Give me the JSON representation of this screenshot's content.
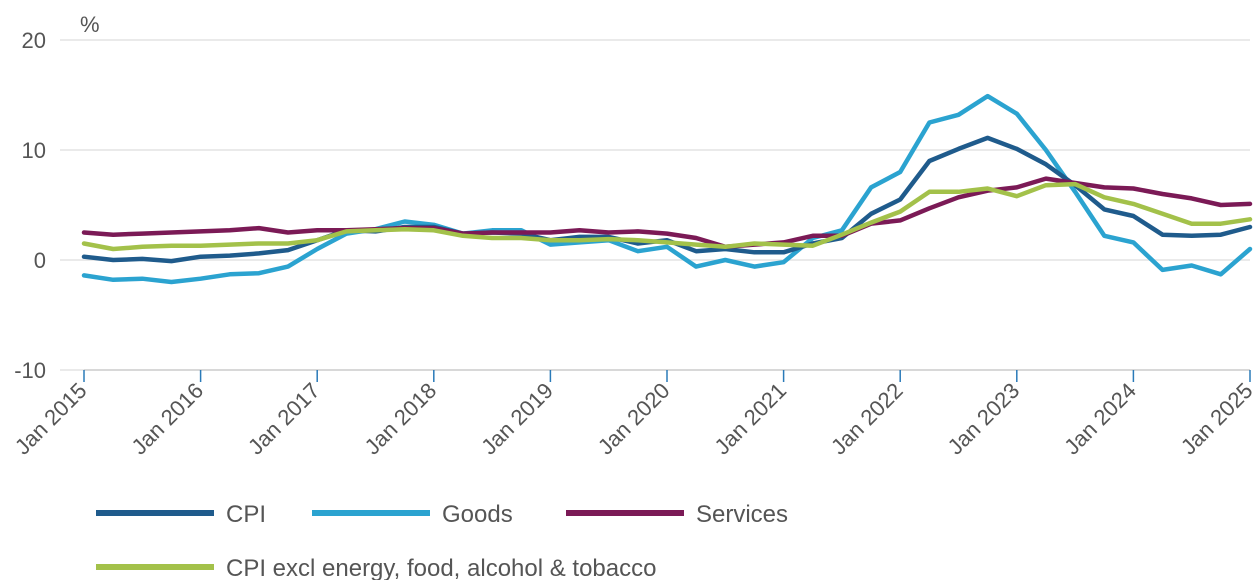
{
  "chart_data": {
    "type": "line",
    "title": "",
    "unit_label": "%",
    "ylim": [
      -10,
      20
    ],
    "yticks": [
      -10,
      0,
      10,
      20
    ],
    "grid": "horizontal",
    "x_start": "Jan 2015",
    "x_end": "Jan 2025",
    "x_tick_labels": [
      "Jan 2015",
      "Jan 2016",
      "Jan 2017",
      "Jan 2018",
      "Jan 2019",
      "Jan 2020",
      "Jan 2021",
      "Jan 2022",
      "Jan 2023",
      "Jan 2024",
      "Jan 2025"
    ],
    "legend_position": "bottom",
    "series": [
      {
        "name": "CPI",
        "color": "#1f5b8c",
        "points": [
          [
            "Jan 2015",
            0.3
          ],
          [
            "Apr 2015",
            0.0
          ],
          [
            "Jul 2015",
            0.1
          ],
          [
            "Oct 2015",
            -0.1
          ],
          [
            "Jan 2016",
            0.3
          ],
          [
            "Apr 2016",
            0.4
          ],
          [
            "Jul 2016",
            0.6
          ],
          [
            "Oct 2016",
            0.9
          ],
          [
            "Jan 2017",
            1.8
          ],
          [
            "Apr 2017",
            2.7
          ],
          [
            "Jul 2017",
            2.6
          ],
          [
            "Oct 2017",
            3.0
          ],
          [
            "Jan 2018",
            3.0
          ],
          [
            "Apr 2018",
            2.4
          ],
          [
            "Jul 2018",
            2.5
          ],
          [
            "Oct 2018",
            2.4
          ],
          [
            "Jan 2019",
            1.8
          ],
          [
            "Apr 2019",
            2.1
          ],
          [
            "Jul 2019",
            2.1
          ],
          [
            "Oct 2019",
            1.5
          ],
          [
            "Jan 2020",
            1.8
          ],
          [
            "Apr 2020",
            0.8
          ],
          [
            "Jul 2020",
            1.0
          ],
          [
            "Oct 2020",
            0.7
          ],
          [
            "Jan 2021",
            0.7
          ],
          [
            "Apr 2021",
            1.5
          ],
          [
            "Jul 2021",
            2.0
          ],
          [
            "Oct 2021",
            4.2
          ],
          [
            "Jan 2022",
            5.5
          ],
          [
            "Apr 2022",
            9.0
          ],
          [
            "Jul 2022",
            10.1
          ],
          [
            "Oct 2022",
            11.1
          ],
          [
            "Jan 2023",
            10.1
          ],
          [
            "Apr 2023",
            8.7
          ],
          [
            "Jul 2023",
            6.8
          ],
          [
            "Oct 2023",
            4.6
          ],
          [
            "Jan 2024",
            4.0
          ],
          [
            "Apr 2024",
            2.3
          ],
          [
            "Jul 2024",
            2.2
          ],
          [
            "Oct 2024",
            2.3
          ],
          [
            "Jan 2025",
            3.0
          ]
        ]
      },
      {
        "name": "Goods",
        "color": "#2ba3d0",
        "points": [
          [
            "Jan 2015",
            -1.4
          ],
          [
            "Apr 2015",
            -1.8
          ],
          [
            "Jul 2015",
            -1.7
          ],
          [
            "Oct 2015",
            -2.0
          ],
          [
            "Jan 2016",
            -1.7
          ],
          [
            "Apr 2016",
            -1.3
          ],
          [
            "Jul 2016",
            -1.2
          ],
          [
            "Oct 2016",
            -0.6
          ],
          [
            "Jan 2017",
            1.0
          ],
          [
            "Apr 2017",
            2.4
          ],
          [
            "Jul 2017",
            2.8
          ],
          [
            "Oct 2017",
            3.5
          ],
          [
            "Jan 2018",
            3.2
          ],
          [
            "Apr 2018",
            2.4
          ],
          [
            "Jul 2018",
            2.7
          ],
          [
            "Oct 2018",
            2.7
          ],
          [
            "Jan 2019",
            1.4
          ],
          [
            "Apr 2019",
            1.6
          ],
          [
            "Jul 2019",
            1.8
          ],
          [
            "Oct 2019",
            0.8
          ],
          [
            "Jan 2020",
            1.2
          ],
          [
            "Apr 2020",
            -0.6
          ],
          [
            "Jul 2020",
            0.0
          ],
          [
            "Oct 2020",
            -0.6
          ],
          [
            "Jan 2021",
            -0.2
          ],
          [
            "Apr 2021",
            2.0
          ],
          [
            "Jul 2021",
            2.7
          ],
          [
            "Oct 2021",
            6.6
          ],
          [
            "Jan 2022",
            8.0
          ],
          [
            "Apr 2022",
            12.5
          ],
          [
            "Jul 2022",
            13.2
          ],
          [
            "Oct 2022",
            14.9
          ],
          [
            "Jan 2023",
            13.3
          ],
          [
            "Apr 2023",
            10.0
          ],
          [
            "Jul 2023",
            6.2
          ],
          [
            "Oct 2023",
            2.2
          ],
          [
            "Jan 2024",
            1.6
          ],
          [
            "Apr 2024",
            -0.9
          ],
          [
            "Jul 2024",
            -0.5
          ],
          [
            "Oct 2024",
            -1.3
          ],
          [
            "Jan 2025",
            1.0
          ]
        ]
      },
      {
        "name": "Services",
        "color": "#7b1a56",
        "points": [
          [
            "Jan 2015",
            2.5
          ],
          [
            "Apr 2015",
            2.3
          ],
          [
            "Jul 2015",
            2.4
          ],
          [
            "Oct 2015",
            2.5
          ],
          [
            "Jan 2016",
            2.6
          ],
          [
            "Apr 2016",
            2.7
          ],
          [
            "Jul 2016",
            2.9
          ],
          [
            "Oct 2016",
            2.5
          ],
          [
            "Jan 2017",
            2.7
          ],
          [
            "Apr 2017",
            2.7
          ],
          [
            "Jul 2017",
            2.8
          ],
          [
            "Oct 2017",
            2.9
          ],
          [
            "Jan 2018",
            2.9
          ],
          [
            "Apr 2018",
            2.4
          ],
          [
            "Jul 2018",
            2.5
          ],
          [
            "Oct 2018",
            2.5
          ],
          [
            "Jan 2019",
            2.5
          ],
          [
            "Apr 2019",
            2.7
          ],
          [
            "Jul 2019",
            2.5
          ],
          [
            "Oct 2019",
            2.6
          ],
          [
            "Jan 2020",
            2.4
          ],
          [
            "Apr 2020",
            2.0
          ],
          [
            "Jul 2020",
            1.2
          ],
          [
            "Oct 2020",
            1.4
          ],
          [
            "Jan 2021",
            1.6
          ],
          [
            "Apr 2021",
            2.2
          ],
          [
            "Jul 2021",
            2.2
          ],
          [
            "Oct 2021",
            3.3
          ],
          [
            "Jan 2022",
            3.6
          ],
          [
            "Apr 2022",
            4.7
          ],
          [
            "Jul 2022",
            5.7
          ],
          [
            "Oct 2022",
            6.3
          ],
          [
            "Jan 2023",
            6.6
          ],
          [
            "Apr 2023",
            7.4
          ],
          [
            "Jul 2023",
            7.0
          ],
          [
            "Oct 2023",
            6.6
          ],
          [
            "Jan 2024",
            6.5
          ],
          [
            "Apr 2024",
            6.0
          ],
          [
            "Jul 2024",
            5.6
          ],
          [
            "Oct 2024",
            5.0
          ],
          [
            "Jan 2025",
            5.1
          ]
        ]
      },
      {
        "name": "CPI excl energy, food, alcohol & tobacco",
        "color": "#a3c14a",
        "points": [
          [
            "Jan 2015",
            1.5
          ],
          [
            "Apr 2015",
            1.0
          ],
          [
            "Jul 2015",
            1.2
          ],
          [
            "Oct 2015",
            1.3
          ],
          [
            "Jan 2016",
            1.3
          ],
          [
            "Apr 2016",
            1.4
          ],
          [
            "Jul 2016",
            1.5
          ],
          [
            "Oct 2016",
            1.5
          ],
          [
            "Jan 2017",
            1.8
          ],
          [
            "Apr 2017",
            2.6
          ],
          [
            "Jul 2017",
            2.7
          ],
          [
            "Oct 2017",
            2.8
          ],
          [
            "Jan 2018",
            2.7
          ],
          [
            "Apr 2018",
            2.2
          ],
          [
            "Jul 2018",
            2.0
          ],
          [
            "Oct 2018",
            2.0
          ],
          [
            "Jan 2019",
            1.8
          ],
          [
            "Apr 2019",
            1.8
          ],
          [
            "Jul 2019",
            1.9
          ],
          [
            "Oct 2019",
            1.8
          ],
          [
            "Jan 2020",
            1.6
          ],
          [
            "Apr 2020",
            1.4
          ],
          [
            "Jul 2020",
            1.2
          ],
          [
            "Oct 2020",
            1.5
          ],
          [
            "Jan 2021",
            1.4
          ],
          [
            "Apr 2021",
            1.3
          ],
          [
            "Jul 2021",
            2.3
          ],
          [
            "Oct 2021",
            3.4
          ],
          [
            "Jan 2022",
            4.4
          ],
          [
            "Apr 2022",
            6.2
          ],
          [
            "Jul 2022",
            6.2
          ],
          [
            "Oct 2022",
            6.5
          ],
          [
            "Jan 2023",
            5.8
          ],
          [
            "Apr 2023",
            6.8
          ],
          [
            "Jul 2023",
            6.9
          ],
          [
            "Oct 2023",
            5.7
          ],
          [
            "Jan 2024",
            5.1
          ],
          [
            "Apr 2024",
            4.2
          ],
          [
            "Jul 2024",
            3.3
          ],
          [
            "Oct 2024",
            3.3
          ],
          [
            "Jan 2025",
            3.7
          ]
        ]
      }
    ]
  }
}
